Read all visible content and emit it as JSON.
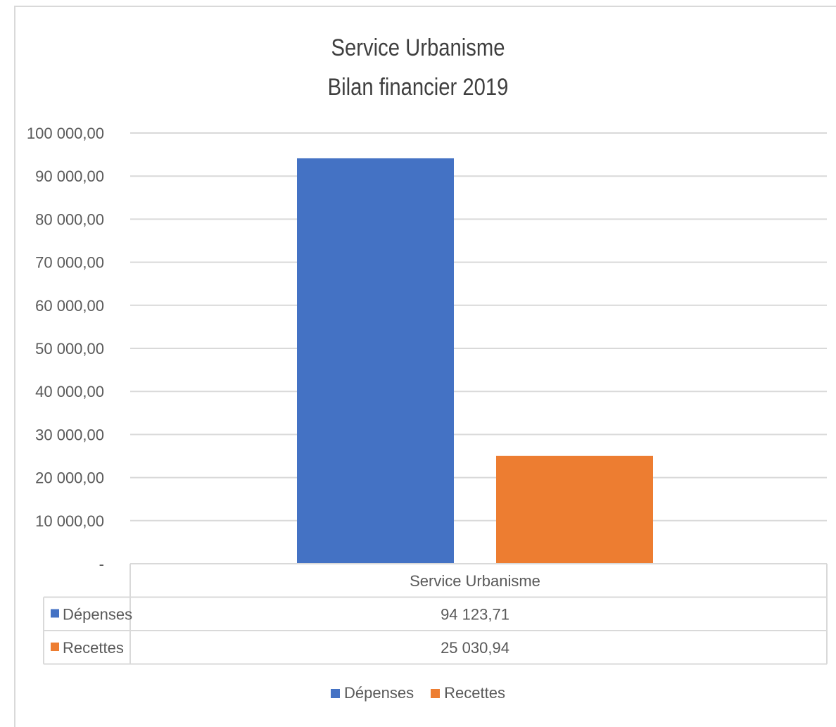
{
  "chart_data": {
    "type": "bar",
    "title": "Service Urbanisme",
    "subtitle": "Bilan financier 2019",
    "categories": [
      "Service Urbanisme"
    ],
    "series": [
      {
        "name": "Dépenses",
        "values": [
          94123.71
        ],
        "value_label": "94 123,71",
        "color": "#4472c4"
      },
      {
        "name": "Recettes",
        "values": [
          25030.94
        ],
        "value_label": "25 030,94",
        "color": "#ed7d31"
      }
    ],
    "ylim": [
      0,
      100000
    ],
    "yticks": [
      0,
      10000,
      20000,
      30000,
      40000,
      50000,
      60000,
      70000,
      80000,
      90000,
      100000
    ],
    "ytick_labels": [
      "-",
      "10 000,00",
      "20 000,00",
      "30 000,00",
      "40 000,00",
      "50 000,00",
      "60 000,00",
      "70 000,00",
      "80 000,00",
      "90 000,00",
      "100 000,00"
    ],
    "grid": true,
    "legend_position": "bottom",
    "data_table": true
  }
}
